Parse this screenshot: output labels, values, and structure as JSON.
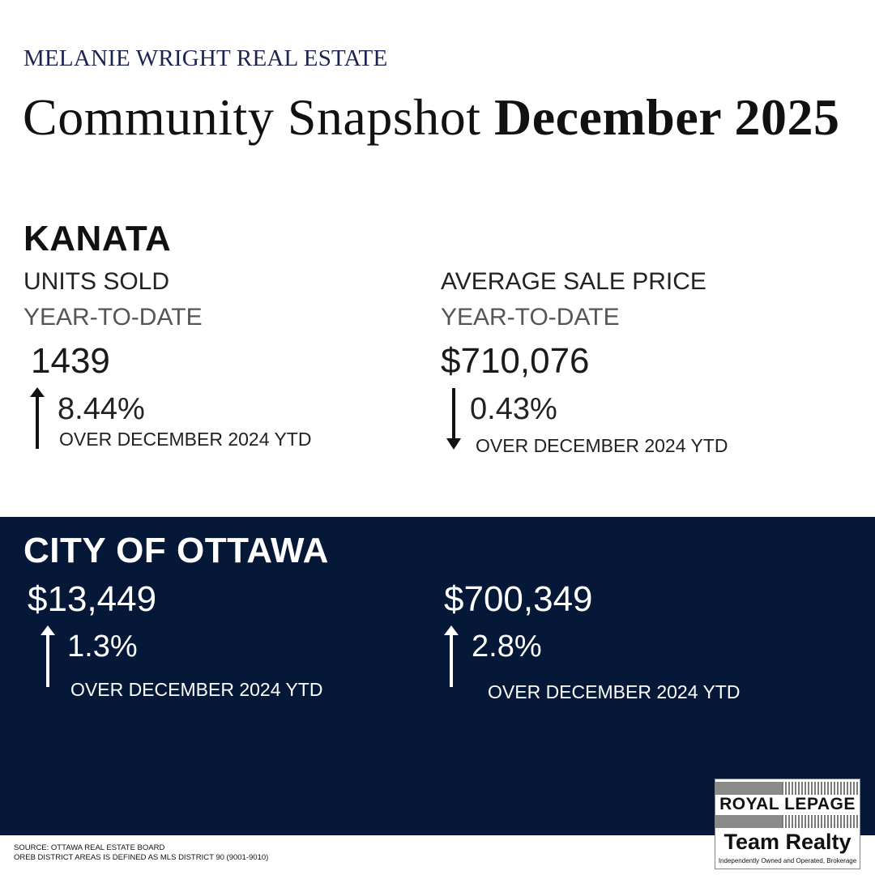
{
  "header": {
    "brand": "MELANIE WRIGHT REAL ESTATE",
    "title_regular": "Community Snapshot ",
    "title_bold": "December 2025"
  },
  "kanata": {
    "title": "KANATA",
    "units": {
      "label": "UNITS SOLD",
      "period": "YEAR-TO-DATE",
      "value": "1439",
      "change": "8.44%",
      "direction": "up",
      "note": "OVER DECEMBER 2024 YTD"
    },
    "price": {
      "label": "AVERAGE SALE PRICE",
      "period": "YEAR-TO-DATE",
      "value": "$710,076",
      "change": "0.43%",
      "direction": "down",
      "note": "OVER DECEMBER 2024 YTD"
    }
  },
  "ottawa": {
    "title": "CITY OF OTTAWA",
    "units": {
      "value": "$13,449",
      "change": "1.3%",
      "direction": "up",
      "note": "OVER DECEMBER 2024 YTD"
    },
    "price": {
      "value": "$700,349",
      "change": "2.8%",
      "direction": "up",
      "note": "OVER DECEMBER 2024 YTD"
    }
  },
  "footer": {
    "source_line1": "SOURCE: OTTAWA REAL ESTATE BOARD",
    "source_line2": "OREB DISTRICT AREAS IS DEFINED AS MLS DISTRICT 90 (9001-9010)"
  },
  "logo": {
    "name_line": "ROYAL LEPAGE",
    "team_line": "Team Realty",
    "tagline": "Independently Owned and Operated, Brokerage"
  },
  "colors": {
    "navy_band": "#051837",
    "brand_text": "#1c2451",
    "text": "#111111"
  }
}
